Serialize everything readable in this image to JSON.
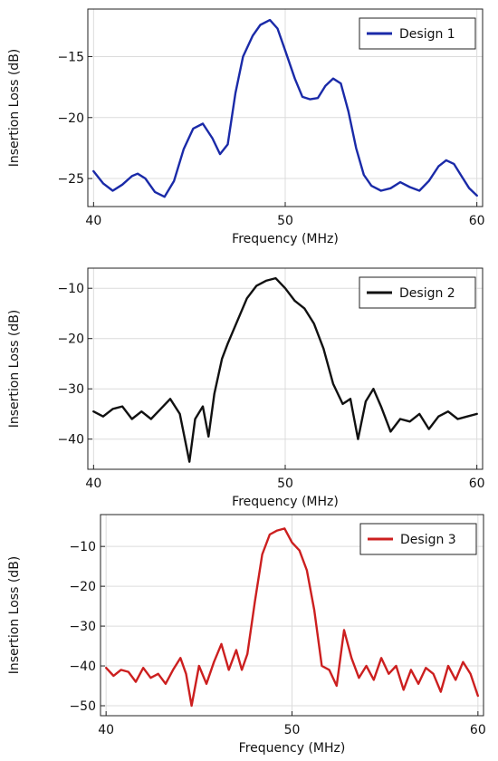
{
  "chart_data": [
    {
      "type": "line",
      "id": "panel-1",
      "xlabel": "Frequency (MHz)",
      "ylabel": "Insertion Loss (dB)",
      "xlim": [
        39.7,
        60.3
      ],
      "ylim": [
        -27.3,
        -11.1
      ],
      "xticks": [
        40,
        50,
        60
      ],
      "yticks": [
        -25,
        -20,
        -15
      ],
      "ytick_labels": [
        "−25",
        "−20",
        "−15"
      ],
      "xtick_labels": [
        "40",
        "50",
        "60"
      ],
      "grid": true,
      "legend_position": "top-right",
      "series": [
        {
          "name": "Design 1",
          "color": "#1a2aa8",
          "x": [
            40.0,
            40.5,
            41.0,
            41.5,
            42.0,
            42.3,
            42.7,
            43.2,
            43.7,
            44.2,
            44.7,
            45.2,
            45.7,
            46.2,
            46.6,
            47.0,
            47.4,
            47.8,
            48.3,
            48.7,
            49.2,
            49.6,
            50.0,
            50.5,
            50.9,
            51.3,
            51.7,
            52.1,
            52.5,
            52.9,
            53.3,
            53.7,
            54.1,
            54.5,
            55.0,
            55.5,
            56.0,
            56.5,
            57.0,
            57.5,
            58.0,
            58.4,
            58.8,
            59.2,
            59.6,
            60.0
          ],
          "y": [
            -24.4,
            -25.4,
            -26.0,
            -25.5,
            -24.8,
            -24.6,
            -25.0,
            -26.1,
            -26.5,
            -25.2,
            -22.6,
            -20.9,
            -20.5,
            -21.7,
            -23.0,
            -22.2,
            -18.0,
            -15.0,
            -13.3,
            -12.4,
            -12.0,
            -12.7,
            -14.5,
            -16.8,
            -18.3,
            -18.5,
            -18.4,
            -17.4,
            -16.8,
            -17.2,
            -19.5,
            -22.5,
            -24.7,
            -25.6,
            -26.0,
            -25.8,
            -25.3,
            -25.7,
            -26.0,
            -25.2,
            -24.0,
            -23.5,
            -23.8,
            -24.8,
            -25.8,
            -26.4
          ]
        }
      ]
    },
    {
      "type": "line",
      "id": "panel-2",
      "xlabel": "Frequency (MHz)",
      "ylabel": "Insertion Loss (dB)",
      "xlim": [
        39.7,
        60.3
      ],
      "ylim": [
        -46.0,
        -6.0
      ],
      "xticks": [
        40,
        50,
        60
      ],
      "yticks": [
        -40,
        -30,
        -20,
        -10
      ],
      "ytick_labels": [
        "−40",
        "−30",
        "−20",
        "−10"
      ],
      "xtick_labels": [
        "40",
        "50",
        "60"
      ],
      "grid": true,
      "legend_position": "top-right",
      "series": [
        {
          "name": "Design 2",
          "color": "#111111",
          "x": [
            40.0,
            40.5,
            41.0,
            41.5,
            42.0,
            42.5,
            43.0,
            43.5,
            44.0,
            44.5,
            45.0,
            45.3,
            45.7,
            46.0,
            46.3,
            46.7,
            47.0,
            47.5,
            48.0,
            48.5,
            49.0,
            49.5,
            50.0,
            50.5,
            51.0,
            51.5,
            52.0,
            52.5,
            53.0,
            53.4,
            53.8,
            54.2,
            54.6,
            55.0,
            55.5,
            56.0,
            56.5,
            57.0,
            57.5,
            58.0,
            58.5,
            59.0,
            59.5,
            60.0
          ],
          "y": [
            -34.5,
            -35.5,
            -34.0,
            -33.5,
            -36.0,
            -34.5,
            -36.0,
            -34.0,
            -32.0,
            -35.0,
            -44.5,
            -36.0,
            -33.5,
            -39.5,
            -31.0,
            -24.0,
            -21.0,
            -16.5,
            -12.0,
            -9.5,
            -8.5,
            -8.0,
            -10.0,
            -12.5,
            -14.0,
            -17.0,
            -22.0,
            -29.0,
            -33.0,
            -32.0,
            -40.0,
            -32.5,
            -30.0,
            -33.5,
            -38.5,
            -36.0,
            -36.5,
            -35.0,
            -38.0,
            -35.5,
            -34.5,
            -36.0,
            -35.5,
            -35.0
          ]
        }
      ]
    },
    {
      "type": "line",
      "id": "panel-3",
      "xlabel": "Frequency (MHz)",
      "ylabel": "Insertion Loss (dB)",
      "xlim": [
        39.7,
        60.3
      ],
      "ylim": [
        -52.5,
        -2.0
      ],
      "xticks": [
        40,
        50,
        60
      ],
      "yticks": [
        -50,
        -40,
        -30,
        -20,
        -10
      ],
      "ytick_labels": [
        "−50",
        "−40",
        "−30",
        "−20",
        "−10"
      ],
      "xtick_labels": [
        "40",
        "50",
        "60"
      ],
      "grid": true,
      "legend_position": "top-right",
      "series": [
        {
          "name": "Design 3",
          "color": "#cc1f1f",
          "x": [
            40.0,
            40.4,
            40.8,
            41.2,
            41.6,
            42.0,
            42.4,
            42.8,
            43.2,
            43.6,
            44.0,
            44.3,
            44.6,
            45.0,
            45.4,
            45.8,
            46.2,
            46.6,
            47.0,
            47.3,
            47.6,
            48.0,
            48.4,
            48.8,
            49.2,
            49.6,
            50.0,
            50.4,
            50.8,
            51.2,
            51.6,
            52.0,
            52.4,
            52.8,
            53.2,
            53.6,
            54.0,
            54.4,
            54.8,
            55.2,
            55.6,
            56.0,
            56.4,
            56.8,
            57.2,
            57.6,
            58.0,
            58.4,
            58.8,
            59.2,
            59.6,
            60.0
          ],
          "y": [
            -40.5,
            -42.5,
            -41.0,
            -41.5,
            -44.0,
            -40.5,
            -43.0,
            -42.0,
            -44.5,
            -41.0,
            -38.0,
            -42.0,
            -50.0,
            -40.0,
            -44.5,
            -39.0,
            -34.5,
            -41.0,
            -36.0,
            -41.0,
            -37.0,
            -24.0,
            -12.0,
            -7.0,
            -6.0,
            -5.5,
            -9.0,
            -11.0,
            -16.0,
            -26.0,
            -40.0,
            -41.0,
            -45.0,
            -31.0,
            -38.0,
            -43.0,
            -40.0,
            -43.5,
            -38.0,
            -42.0,
            -40.0,
            -46.0,
            -41.0,
            -44.5,
            -40.5,
            -42.0,
            -46.5,
            -40.0,
            -43.5,
            -39.0,
            -42.0,
            -47.5
          ]
        }
      ]
    }
  ]
}
